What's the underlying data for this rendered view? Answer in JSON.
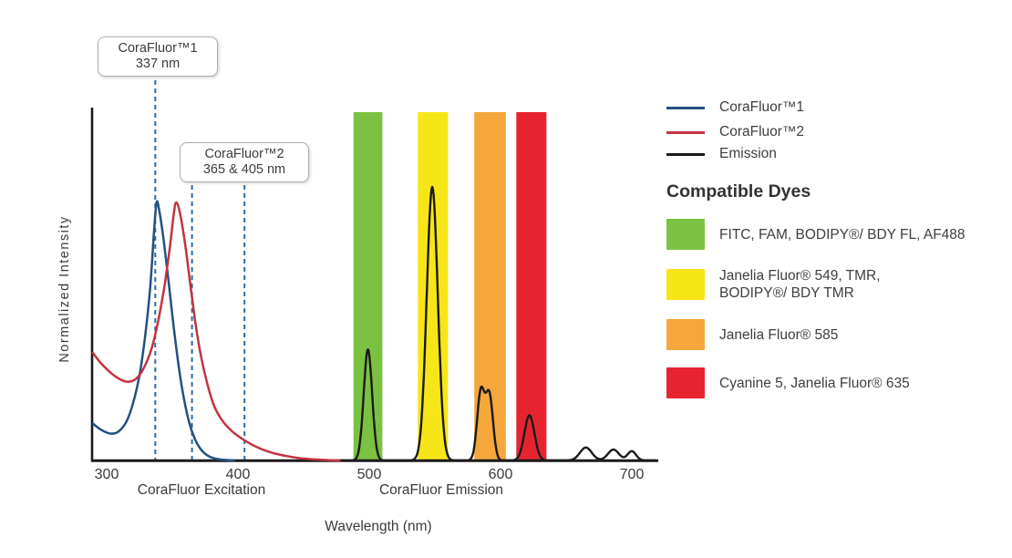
{
  "figure": {
    "y_axis_label": "Normalized Intensity",
    "x_axis_label": "Wavelength (nm)",
    "region_labels": [
      {
        "label": "CoraFluor Excitation"
      },
      {
        "label": "CoraFluor Emission"
      }
    ]
  },
  "annotations": [
    {
      "title": "CoraFluor™1",
      "value": "337 nm",
      "wavelengths_nm": [
        337
      ]
    },
    {
      "title": "CoraFluor™2",
      "value": "365 & 405 nm",
      "wavelengths_nm": [
        365,
        405
      ]
    }
  ],
  "legend": {
    "items": [
      {
        "label": "CoraFluor™1",
        "color": "#235182"
      },
      {
        "label": "CoraFluor™2",
        "color": "#C23340"
      },
      {
        "label": "Emission",
        "color": "#1a1a1a"
      }
    ]
  },
  "compatible_dyes": {
    "heading": "Compatible Dyes",
    "items": [
      {
        "name": "green-filter-dyes",
        "color": "#7CC242",
        "lines": [
          "FITC, FAM, BODIPY®/ BDY FL, AF488"
        ]
      },
      {
        "name": "yellow-filter-dyes",
        "color": "#F7E617",
        "lines": [
          "Janelia Fluor® 549, TMR,",
          "BODIPY®/ BDY TMR"
        ]
      },
      {
        "name": "orange-filter-dyes",
        "color": "#F5A73C",
        "lines": [
          "Janelia Fluor® 585"
        ]
      },
      {
        "name": "red-filter-dyes",
        "color": "#E62430",
        "lines": [
          "Cyanine 5, Janelia Fluor® 635"
        ]
      }
    ]
  },
  "chart_data": {
    "type": "line",
    "title": "",
    "xlabel": "Wavelength (nm)",
    "ylabel": "Normalized Intensity",
    "x_range_nm": [
      289,
      720
    ],
    "x_ticks": [
      300,
      400,
      500,
      600,
      700
    ],
    "y_range": [
      0,
      1.35
    ],
    "grid": false,
    "legend_position": "right",
    "dash_color": "#2D6DA3",
    "excitation_max_lines_nm": [
      337,
      365,
      405
    ],
    "series": [
      {
        "name": "CoraFluor™1",
        "role": "excitation",
        "color": "#235182",
        "points": [
          [
            289,
            0.145
          ],
          [
            296,
            0.118
          ],
          [
            303,
            0.104
          ],
          [
            309,
            0.112
          ],
          [
            315,
            0.15
          ],
          [
            320,
            0.22
          ],
          [
            325,
            0.33
          ],
          [
            329,
            0.47
          ],
          [
            333,
            0.66
          ],
          [
            336,
            0.88
          ],
          [
            338,
            1.0
          ],
          [
            340,
            0.97
          ],
          [
            343,
            0.87
          ],
          [
            347,
            0.7
          ],
          [
            351,
            0.52
          ],
          [
            355,
            0.36
          ],
          [
            359,
            0.235
          ],
          [
            363,
            0.145
          ],
          [
            367,
            0.085
          ],
          [
            371,
            0.048
          ],
          [
            376,
            0.022
          ],
          [
            382,
            0.008
          ],
          [
            390,
            0.002
          ],
          [
            398,
            0
          ]
        ]
      },
      {
        "name": "CoraFluor™2",
        "role": "excitation",
        "color": "#C23340",
        "points": [
          [
            289,
            0.42
          ],
          [
            296,
            0.375
          ],
          [
            303,
            0.34
          ],
          [
            310,
            0.315
          ],
          [
            316,
            0.305
          ],
          [
            322,
            0.315
          ],
          [
            328,
            0.355
          ],
          [
            334,
            0.43
          ],
          [
            339,
            0.535
          ],
          [
            344,
            0.675
          ],
          [
            348,
            0.82
          ],
          [
            351,
            0.95
          ],
          [
            353,
            1.0
          ],
          [
            356,
            0.955
          ],
          [
            360,
            0.83
          ],
          [
            364,
            0.67
          ],
          [
            368,
            0.52
          ],
          [
            372,
            0.4
          ],
          [
            377,
            0.29
          ],
          [
            382,
            0.21
          ],
          [
            388,
            0.155
          ],
          [
            394,
            0.12
          ],
          [
            400,
            0.095
          ],
          [
            406,
            0.075
          ],
          [
            413,
            0.055
          ],
          [
            420,
            0.04
          ],
          [
            428,
            0.027
          ],
          [
            437,
            0.017
          ],
          [
            447,
            0.009
          ],
          [
            458,
            0.004
          ],
          [
            470,
            0.001
          ],
          [
            482,
            0
          ]
        ]
      },
      {
        "name": "Emission",
        "role": "emission",
        "color": "#1a1a1a",
        "gaussian_peaks": [
          {
            "center_nm": 499,
            "height": 0.43,
            "sigma_nm": 3.2
          },
          {
            "center_nm": 548,
            "height": 1.06,
            "sigma_nm": 4.2
          },
          {
            "center_nm": 585,
            "height": 0.265,
            "sigma_nm": 2.8
          },
          {
            "center_nm": 591.5,
            "height": 0.25,
            "sigma_nm": 2.8
          },
          {
            "center_nm": 622,
            "height": 0.175,
            "sigma_nm": 3.8
          },
          {
            "center_nm": 665,
            "height": 0.05,
            "sigma_nm": 4.5
          },
          {
            "center_nm": 686,
            "height": 0.042,
            "sigma_nm": 4.2
          },
          {
            "center_nm": 700,
            "height": 0.036,
            "sigma_nm": 3.2
          }
        ]
      }
    ],
    "filter_bands": [
      {
        "name": "green",
        "color": "#7CC242",
        "range_nm": [
          488,
          510
        ]
      },
      {
        "name": "yellow",
        "color": "#F7E617",
        "range_nm": [
          537,
          560
        ]
      },
      {
        "name": "orange",
        "color": "#F5A73C",
        "range_nm": [
          580,
          604
        ]
      },
      {
        "name": "red",
        "color": "#E62430",
        "range_nm": [
          612,
          635
        ]
      }
    ]
  }
}
